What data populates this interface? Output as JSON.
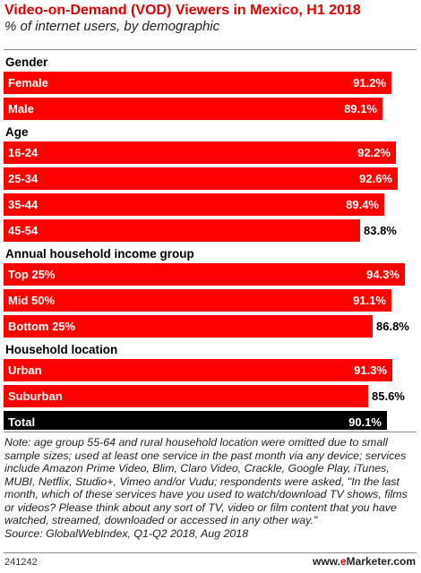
{
  "header": {
    "title": "Video-on-Demand (VOD) Viewers in Mexico, H1 2018",
    "subtitle": "% of internet users, by demographic"
  },
  "colors": {
    "bar": "#ff0000",
    "total_bar": "#000000",
    "title": "#e10000"
  },
  "chart_data": {
    "type": "bar",
    "orientation": "horizontal",
    "unit": "%",
    "xlim": [
      0,
      100
    ],
    "groups": [
      {
        "label": "Gender",
        "rows": [
          {
            "label": "Female",
            "value": 91.2,
            "display": "91.2%"
          },
          {
            "label": "Male",
            "value": 89.1,
            "display": "89.1%"
          }
        ]
      },
      {
        "label": "Age",
        "rows": [
          {
            "label": "16-24",
            "value": 92.2,
            "display": "92.2%"
          },
          {
            "label": "25-34",
            "value": 92.6,
            "display": "92.6%"
          },
          {
            "label": "35-44",
            "value": 89.4,
            "display": "89.4%"
          },
          {
            "label": "45-54",
            "value": 83.8,
            "display": "83.8%"
          }
        ]
      },
      {
        "label": "Annual household income group",
        "rows": [
          {
            "label": "Top 25%",
            "value": 94.3,
            "display": "94.3%"
          },
          {
            "label": "Mid 50%",
            "value": 91.1,
            "display": "91.1%"
          },
          {
            "label": "Bottom 25%",
            "value": 86.8,
            "display": "86.8%"
          }
        ]
      },
      {
        "label": "Household location",
        "rows": [
          {
            "label": "Urban",
            "value": 91.3,
            "display": "91.3%"
          },
          {
            "label": "Suburban",
            "value": 85.6,
            "display": "85.6%"
          }
        ]
      },
      {
        "label": "",
        "rows": [
          {
            "label": "Total",
            "value": 90.1,
            "display": "90.1%",
            "total": true
          }
        ]
      }
    ]
  },
  "note": "Note: age group 55-64 and rural household location were omitted due to small sample sizes; used at least one service in the past month via any device; services include Amazon Prime Video, Blim, Claro Video, Crackle, Google Play, iTunes, MUBI, Netflix, Studio+, Vimeo and/or Vudu; respondents were asked, \"In the last month, which of these services have you used to watch/download TV shows, films or videos? Please think about any sort of TV, video or film content that you have watched, streamed, downloaded or accessed in any other way.\"",
  "source": "Source: GlobalWebIndex, Q1-Q2 2018, Aug 2018",
  "footer": {
    "chart_id": "241242",
    "brand_prefix": "www.",
    "brand_e": "e",
    "brand_rest": "Marketer.com"
  }
}
